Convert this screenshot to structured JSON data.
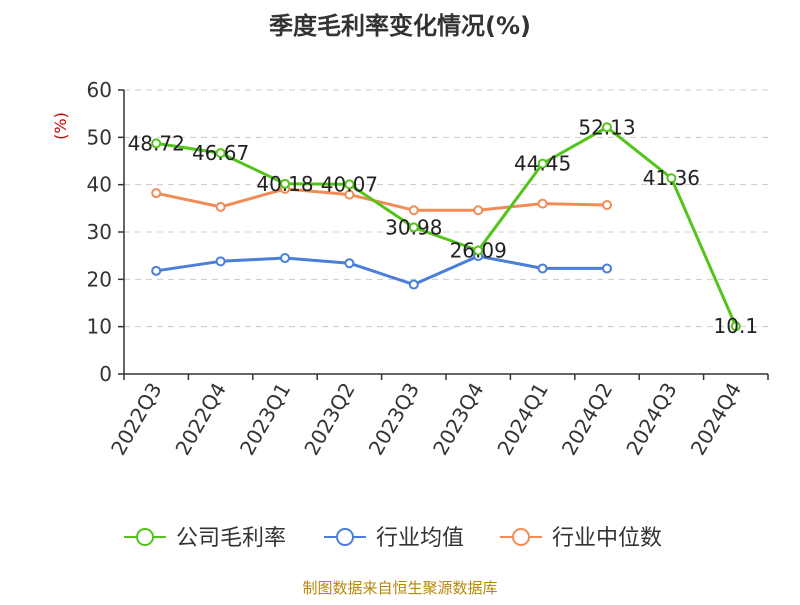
{
  "chart_data": {
    "type": "line",
    "title": "季度毛利率变化情况(%)",
    "ylabel": "(%)",
    "xlabel": "",
    "ylim": [
      0,
      60
    ],
    "yticks": [
      0,
      10,
      20,
      30,
      40,
      50,
      60
    ],
    "grid": true,
    "legend_position": "bottom",
    "categories": [
      "2022Q3",
      "2022Q4",
      "2023Q1",
      "2023Q2",
      "2023Q3",
      "2023Q4",
      "2024Q1",
      "2024Q2",
      "2024Q3",
      "2024Q4"
    ],
    "series": [
      {
        "name": "公司毛利率",
        "color": "#52c41a",
        "show_labels": true,
        "values": [
          48.72,
          46.67,
          40.18,
          40.07,
          30.98,
          26.09,
          44.45,
          52.13,
          41.36,
          10.1
        ]
      },
      {
        "name": "行业均值",
        "color": "#4a7ed9",
        "show_labels": false,
        "values": [
          21.8,
          23.8,
          24.5,
          23.4,
          18.9,
          24.9,
          22.3,
          22.3,
          null,
          null
        ]
      },
      {
        "name": "行业中位数",
        "color": "#f28c57",
        "show_labels": false,
        "values": [
          38.2,
          35.3,
          39.1,
          37.9,
          34.6,
          34.6,
          36.0,
          35.7,
          null,
          null
        ]
      }
    ]
  },
  "source_note": "制图数据来自恒生聚源数据库",
  "colors": {
    "title": "#333333",
    "axis": "#333333",
    "ylabel": "#cc0000",
    "grid": "#cccccc",
    "source": "#b8860b"
  }
}
